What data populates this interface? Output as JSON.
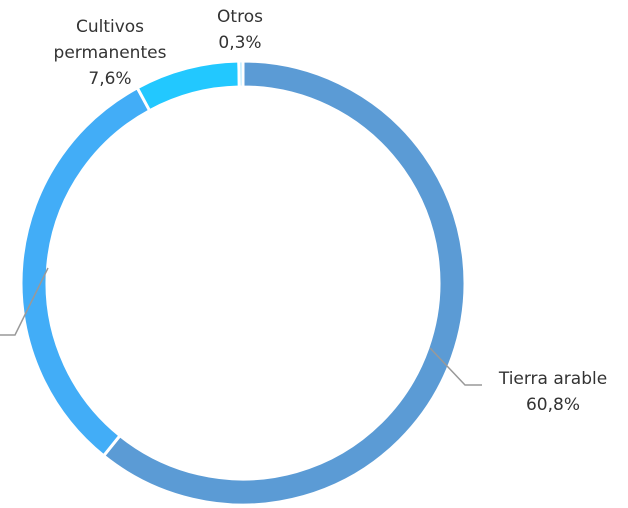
{
  "chart_data": {
    "type": "donut",
    "categories": [
      "Tierra arable",
      null,
      "Cultivos permanentes",
      "Otros"
    ],
    "values": [
      60.8,
      31.3,
      7.6,
      0.3
    ],
    "value_labels": [
      "60,8%",
      null,
      "7,6%",
      "0,3%"
    ],
    "colors": [
      "#5b9bd5",
      "#42adf7",
      "#22c8ff",
      "#a8e4ff"
    ]
  }
}
